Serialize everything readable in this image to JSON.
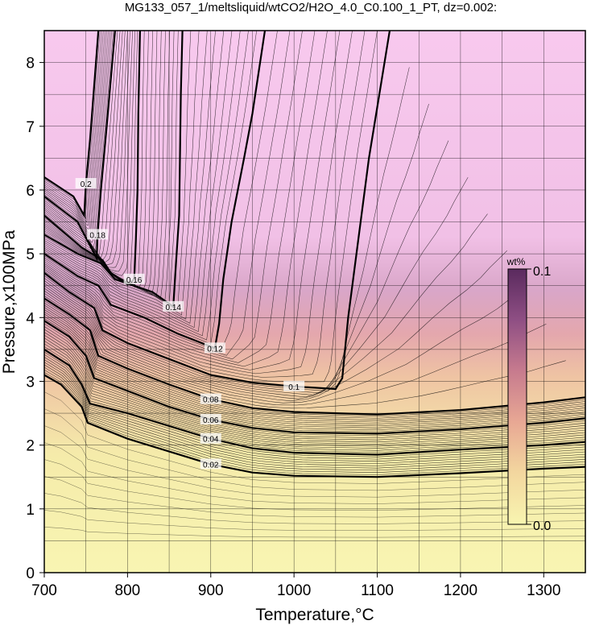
{
  "chart_data": {
    "type": "heatmap",
    "title": "MG133_057_1/meltsliquid/wtCO2/H2O_4.0_C0.100_1_PT, dz=0.002:",
    "xlabel": "Temperature,°C",
    "ylabel": "Pressure,x100MPa",
    "xlim": [
      700,
      1350
    ],
    "ylim": [
      0,
      8.5
    ],
    "x_ticks": [
      "700",
      "800",
      "900",
      "1000",
      "1100",
      "1200",
      "1300"
    ],
    "y_ticks": [
      "0",
      "1",
      "2",
      "3",
      "4",
      "5",
      "6",
      "7",
      "8"
    ],
    "grid": true,
    "colorbar": {
      "unit": "wt%",
      "min_label": "0.0",
      "max_label": "0.1",
      "min": 0.0,
      "max": 0.1,
      "colors": [
        "#f8f5b0",
        "#f3d79f",
        "#e8a894",
        "#c77b8e",
        "#8f4f84",
        "#5a2a5e"
      ]
    },
    "contour_interval": 0.002,
    "contours": [
      {
        "label": "0.02",
        "points": [
          [
            700,
            3.1
          ],
          [
            720,
            2.95
          ],
          [
            745,
            2.6
          ],
          [
            752,
            2.35
          ],
          [
            800,
            2.1
          ],
          [
            850,
            1.9
          ],
          [
            900,
            1.7
          ],
          [
            950,
            1.57
          ],
          [
            1000,
            1.52
          ],
          [
            1100,
            1.5
          ],
          [
            1200,
            1.56
          ],
          [
            1300,
            1.63
          ],
          [
            1350,
            1.66
          ]
        ]
      },
      {
        "label": "0.04",
        "points": [
          [
            700,
            3.5
          ],
          [
            730,
            3.25
          ],
          [
            745,
            2.95
          ],
          [
            755,
            2.65
          ],
          [
            800,
            2.5
          ],
          [
            850,
            2.3
          ],
          [
            900,
            2.1
          ],
          [
            950,
            1.95
          ],
          [
            1000,
            1.88
          ],
          [
            1100,
            1.85
          ],
          [
            1200,
            1.93
          ],
          [
            1300,
            2.0
          ],
          [
            1350,
            2.05
          ]
        ]
      },
      {
        "label": "0.06",
        "points": [
          [
            700,
            3.95
          ],
          [
            730,
            3.7
          ],
          [
            750,
            3.4
          ],
          [
            760,
            3.05
          ],
          [
            800,
            2.85
          ],
          [
            850,
            2.6
          ],
          [
            900,
            2.4
          ],
          [
            950,
            2.27
          ],
          [
            1000,
            2.2
          ],
          [
            1100,
            2.18
          ],
          [
            1200,
            2.25
          ],
          [
            1300,
            2.35
          ],
          [
            1350,
            2.42
          ]
        ]
      },
      {
        "label": "0.08",
        "points": [
          [
            700,
            4.3
          ],
          [
            730,
            4.05
          ],
          [
            755,
            3.8
          ],
          [
            765,
            3.4
          ],
          [
            800,
            3.2
          ],
          [
            850,
            2.95
          ],
          [
            900,
            2.72
          ],
          [
            950,
            2.58
          ],
          [
            1000,
            2.52
          ],
          [
            1100,
            2.48
          ],
          [
            1200,
            2.55
          ],
          [
            1300,
            2.67
          ],
          [
            1350,
            2.75
          ]
        ]
      },
      {
        "label": "0.1",
        "points": [
          [
            700,
            4.7
          ],
          [
            730,
            4.4
          ],
          [
            760,
            4.15
          ],
          [
            770,
            3.8
          ],
          [
            800,
            3.6
          ],
          [
            850,
            3.35
          ],
          [
            900,
            3.1
          ],
          [
            950,
            2.98
          ],
          [
            1000,
            2.92
          ],
          [
            1050,
            2.88
          ],
          [
            1058,
            3.05
          ],
          [
            1065,
            4.0
          ],
          [
            1075,
            5.0
          ],
          [
            1090,
            6.5
          ],
          [
            1105,
            7.7
          ],
          [
            1115,
            8.5
          ]
        ]
      },
      {
        "label": "0.12",
        "points": [
          [
            700,
            5.0
          ],
          [
            740,
            4.65
          ],
          [
            765,
            4.5
          ],
          [
            780,
            4.2
          ],
          [
            820,
            4.0
          ],
          [
            860,
            3.75
          ],
          [
            905,
            3.52
          ],
          [
            910,
            3.9
          ],
          [
            915,
            4.6
          ],
          [
            925,
            5.5
          ],
          [
            940,
            6.5
          ],
          [
            950,
            7.2
          ],
          [
            965,
            8.5
          ]
        ]
      },
      {
        "label": "0.14",
        "points": [
          [
            700,
            5.3
          ],
          [
            740,
            5.0
          ],
          [
            768,
            4.85
          ],
          [
            785,
            4.6
          ],
          [
            830,
            4.4
          ],
          [
            855,
            4.17
          ],
          [
            858,
            4.8
          ],
          [
            862,
            5.6
          ],
          [
            863,
            6.5
          ],
          [
            864,
            7.5
          ],
          [
            866,
            8.5
          ]
        ]
      },
      {
        "label": "0.16",
        "points": [
          [
            700,
            5.6
          ],
          [
            745,
            5.1
          ],
          [
            770,
            4.9
          ],
          [
            780,
            4.7
          ],
          [
            800,
            4.52
          ],
          [
            808,
            4.6
          ],
          [
            810,
            5.2
          ],
          [
            812,
            6.0
          ],
          [
            813,
            7.2
          ],
          [
            815,
            8.5
          ]
        ]
      },
      {
        "label": "0.18",
        "points": [
          [
            700,
            5.9
          ],
          [
            740,
            5.5
          ],
          [
            763,
            4.93
          ],
          [
            764,
            5.3
          ],
          [
            768,
            6.0
          ],
          [
            775,
            7.0
          ],
          [
            785,
            8.5
          ]
        ]
      },
      {
        "label": "0.2",
        "points": [
          [
            700,
            6.2
          ],
          [
            735,
            5.9
          ],
          [
            748,
            5.6
          ],
          [
            750,
            6.1
          ],
          [
            755,
            6.8
          ],
          [
            765,
            8.5
          ]
        ]
      }
    ]
  }
}
